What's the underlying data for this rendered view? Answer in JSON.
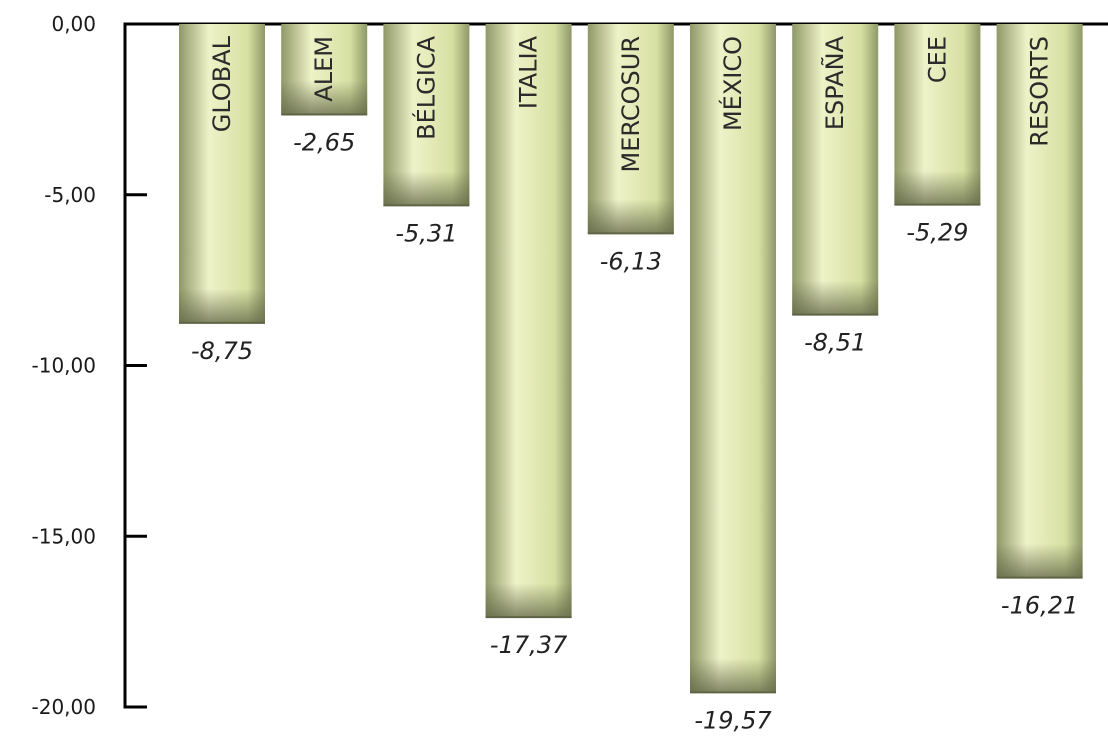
{
  "chart_data": {
    "type": "bar",
    "categories": [
      "GLOBAL",
      "ALEM",
      "BÉLGICA",
      "ITALIA",
      "MERCOSUR",
      "MÉXICO",
      "ESPAÑA",
      "CEE",
      "RESORTS"
    ],
    "values": [
      -8.75,
      -2.65,
      -5.31,
      -17.37,
      -6.13,
      -19.57,
      -8.51,
      -5.29,
      -16.21
    ],
    "value_labels": [
      "-8,75",
      "-2,65",
      "-5,31",
      "-17,37",
      "-6,13",
      "-19,57",
      "-8,51",
      "-5,29",
      "-16,21"
    ],
    "y_ticks": [
      0,
      -5,
      -10,
      -15,
      -20
    ],
    "y_tick_labels": [
      "0,00",
      "-5,00",
      "-10,00",
      "-15,00",
      "-20,00"
    ],
    "ylim": [
      -20,
      0
    ],
    "title": "",
    "xlabel": "",
    "ylabel": "",
    "grid": false,
    "legend": false,
    "colors": {
      "bar_light": "#eef2c8",
      "bar_mid": "#d6e0a2",
      "bar_dark": "#8f9868",
      "bar_shadow": "#5f6444",
      "axis": "#000000"
    }
  }
}
